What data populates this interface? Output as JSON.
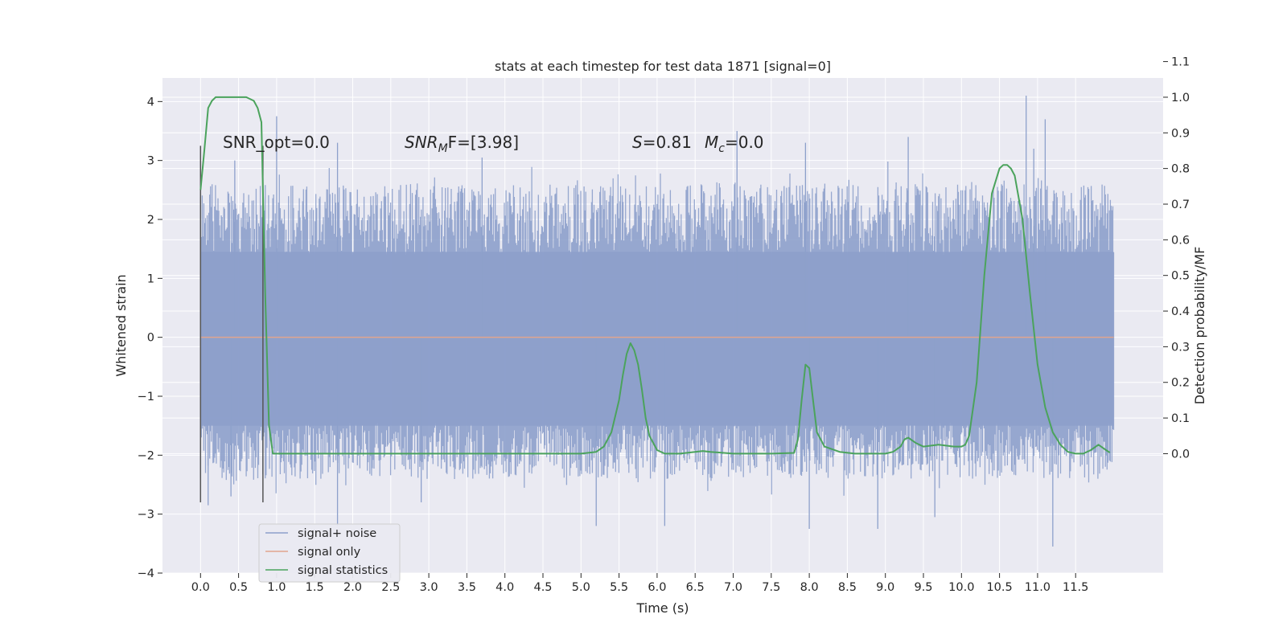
{
  "chart_data": {
    "type": "line",
    "title": "stats at each timestep for test data 1871 [signal=0]",
    "xlabel": "Time (s)",
    "ylabel": "Whitened strain",
    "y2label": "Detection probability/MF",
    "xlim": [
      -0.5,
      12.65
    ],
    "ylim": [
      -4,
      4.4
    ],
    "y2lim": [
      -0.335,
      1.054
    ],
    "x_ticks": [
      "0.0",
      "0.5",
      "1.0",
      "1.5",
      "2.0",
      "2.5",
      "3.0",
      "3.5",
      "4.0",
      "4.5",
      "5.0",
      "5.5",
      "6.0",
      "6.5",
      "7.0",
      "7.5",
      "8.0",
      "8.5",
      "9.0",
      "9.5",
      "10.0",
      "10.5",
      "11.0",
      "11.5"
    ],
    "y_ticks": [
      "4",
      "3",
      "2",
      "1",
      "0",
      "−1",
      "−2",
      "−3",
      "−4"
    ],
    "y2_ticks": [
      "1.1",
      "1.0",
      "0.9",
      "0.8",
      "0.7",
      "0.6",
      "0.5",
      "0.4",
      "0.3",
      "0.2",
      "0.1",
      "0.0"
    ],
    "grid": true,
    "legend_position": "lower-left",
    "noise_band": {
      "x_range": [
        0.0,
        12.0
      ],
      "core_y": [
        -1.5,
        1.45
      ],
      "typical_peak": 2.6,
      "max_peak": 4.1,
      "min_trough": -3.55
    },
    "noise_spikes": [
      {
        "x": 1.0,
        "y": 3.75
      },
      {
        "x": 1.8,
        "y": 3.3
      },
      {
        "x": 0.45,
        "y": 3.0
      },
      {
        "x": 3.7,
        "y": 3.05
      },
      {
        "x": 7.05,
        "y": 3.5
      },
      {
        "x": 7.95,
        "y": 3.3
      },
      {
        "x": 9.3,
        "y": 3.4
      },
      {
        "x": 10.85,
        "y": 4.1
      },
      {
        "x": 11.1,
        "y": 3.7
      },
      {
        "x": 10.95,
        "y": 3.2
      },
      {
        "x": 0.1,
        "y": -2.85
      },
      {
        "x": 1.8,
        "y": -3.2
      },
      {
        "x": 5.2,
        "y": -3.2
      },
      {
        "x": 6.1,
        "y": -3.2
      },
      {
        "x": 8.0,
        "y": -3.25
      },
      {
        "x": 8.9,
        "y": -3.25
      },
      {
        "x": 9.65,
        "y": -3.05
      },
      {
        "x": 11.2,
        "y": -3.55
      },
      {
        "x": 0.4,
        "y": -2.7
      },
      {
        "x": 2.9,
        "y": -2.8
      }
    ],
    "signal_only": {
      "x": [
        0.0,
        12.0
      ],
      "y": [
        0.0,
        0.0
      ]
    },
    "signal_statistics": {
      "x": [
        0.0,
        0.05,
        0.1,
        0.15,
        0.2,
        0.3,
        0.4,
        0.5,
        0.6,
        0.7,
        0.75,
        0.8,
        0.85,
        0.9,
        0.95,
        1.0,
        1.1,
        1.5,
        2.0,
        3.0,
        4.0,
        5.0,
        5.2,
        5.3,
        5.4,
        5.5,
        5.55,
        5.6,
        5.65,
        5.7,
        5.75,
        5.8,
        5.85,
        5.9,
        6.0,
        6.1,
        6.3,
        6.5,
        6.6,
        6.7,
        7.0,
        7.5,
        7.8,
        7.85,
        7.9,
        7.95,
        8.0,
        8.05,
        8.1,
        8.2,
        8.4,
        8.6,
        9.0,
        9.1,
        9.2,
        9.25,
        9.3,
        9.4,
        9.5,
        9.7,
        9.9,
        10.0,
        10.05,
        10.1,
        10.2,
        10.3,
        10.4,
        10.5,
        10.55,
        10.6,
        10.65,
        10.7,
        10.8,
        10.9,
        11.0,
        11.1,
        11.2,
        11.3,
        11.4,
        11.5,
        11.6,
        11.7,
        11.8,
        11.9,
        11.95
      ],
      "y": [
        0.74,
        0.85,
        0.97,
        0.99,
        1.0,
        1.0,
        1.0,
        1.0,
        1.0,
        0.99,
        0.97,
        0.93,
        0.45,
        0.08,
        0.0,
        0.0,
        0.0,
        0.0,
        0.0,
        0.0,
        0.0,
        0.0,
        0.005,
        0.02,
        0.06,
        0.15,
        0.22,
        0.28,
        0.31,
        0.29,
        0.25,
        0.18,
        0.1,
        0.05,
        0.01,
        0.0,
        0.0,
        0.005,
        0.0075,
        0.005,
        0.0,
        0.0,
        0.002,
        0.04,
        0.15,
        0.25,
        0.24,
        0.15,
        0.06,
        0.02,
        0.005,
        0.0,
        0.0,
        0.005,
        0.02,
        0.04,
        0.045,
        0.03,
        0.02,
        0.025,
        0.02,
        0.02,
        0.025,
        0.05,
        0.2,
        0.5,
        0.73,
        0.8,
        0.81,
        0.81,
        0.8,
        0.78,
        0.66,
        0.45,
        0.25,
        0.13,
        0.06,
        0.025,
        0.005,
        0.0,
        0.0,
        0.01,
        0.025,
        0.01,
        0.003
      ]
    },
    "snr_markers": [
      {
        "x": 0.0,
        "y_range": [
          -2.8,
          3.25
        ]
      },
      {
        "x": 0.82,
        "y_range": [
          -2.8,
          3.25
        ]
      }
    ],
    "colors": {
      "noise": "#8da0cb",
      "signal_only": "#e1a58e",
      "statistics": "#4ba35c",
      "marker": "#555555",
      "panel": "#eaeaf2",
      "grid": "#ffffff"
    }
  },
  "annotations": {
    "snr_opt": "SNR_opt=0.0",
    "snr_mf_prefix": "SNR",
    "snr_mf_sub": "M",
    "snr_mf_rest": "F=[3.98]",
    "s_label": "S",
    "s_value": "=0.81",
    "mc_label": "M",
    "mc_sub": "c",
    "mc_value": "=0.0"
  },
  "legend": {
    "items": [
      {
        "label": "signal+ noise"
      },
      {
        "label": "signal only"
      },
      {
        "label": "signal statistics"
      }
    ]
  }
}
